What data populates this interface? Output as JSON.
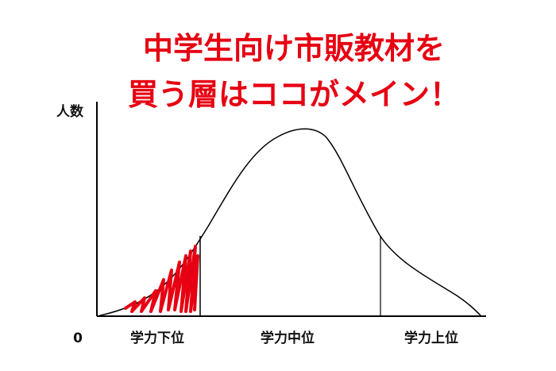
{
  "title": {
    "line1": "中学生向け市販教材を",
    "line2": "買う層はココがメイン！"
  },
  "axis": {
    "y_label": "人数",
    "origin_label": "0"
  },
  "segments": [
    {
      "label": "学力下位"
    },
    {
      "label": "学力中位"
    },
    {
      "label": "学力上位"
    }
  ]
}
